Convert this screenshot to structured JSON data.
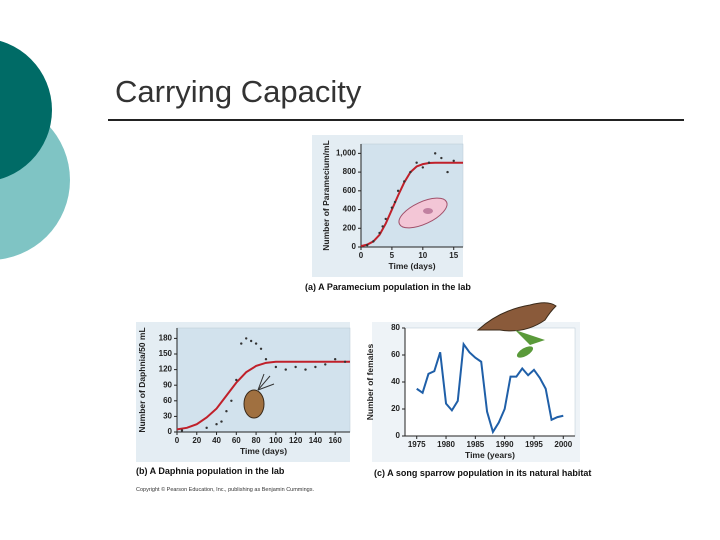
{
  "slide_title": "Carrying Capacity",
  "credit": "Copyright © Pearson Education, Inc., publishing as Benjamin Cummings.",
  "chart_data": [
    {
      "type": "line",
      "caption": "(a) A Paramecium population in the lab",
      "xlabel": "Time (days)",
      "ylabel": "Number of Paramecium/mL",
      "xlim": [
        0,
        16.5
      ],
      "ylim": [
        0,
        1100
      ],
      "xticks": [
        0,
        5,
        10,
        15
      ],
      "yticks": [
        0,
        200,
        400,
        600,
        800,
        {
          "value": 1000,
          "label": "1,000"
        }
      ],
      "series": [
        {
          "color": "#c0202a",
          "style": "line",
          "x": [
            0,
            1,
            2,
            3,
            4,
            5,
            6,
            7,
            8,
            9,
            10,
            11,
            12,
            16.5
          ],
          "values": [
            10,
            25,
            60,
            130,
            250,
            400,
            550,
            690,
            800,
            860,
            885,
            897,
            900,
            900
          ]
        },
        {
          "color": "#333333",
          "style": "points",
          "x": [
            1,
            2,
            3,
            3.5,
            4,
            5,
            5.5,
            6,
            7,
            8,
            9,
            10,
            11,
            12,
            13,
            14,
            15
          ],
          "values": [
            20,
            60,
            150,
            220,
            300,
            420,
            480,
            600,
            700,
            800,
            900,
            850,
            900,
            1000,
            950,
            800,
            920
          ]
        }
      ]
    },
    {
      "type": "line",
      "caption": "(b) A Daphnia population in the lab",
      "xlabel": "Time (days)",
      "ylabel": "Number of Daphnia/50 mL",
      "xlim": [
        0,
        175
      ],
      "ylim": [
        0,
        200
      ],
      "xticks": [
        0,
        20,
        40,
        60,
        80,
        100,
        120,
        140,
        160
      ],
      "yticks": [
        0,
        30,
        60,
        90,
        120,
        150,
        180
      ],
      "series": [
        {
          "color": "#c0202a",
          "style": "line",
          "x": [
            0,
            10,
            20,
            30,
            40,
            50,
            60,
            70,
            80,
            90,
            100,
            175
          ],
          "values": [
            5,
            8,
            15,
            28,
            45,
            70,
            95,
            115,
            127,
            133,
            135,
            135
          ]
        },
        {
          "color": "#333333",
          "style": "points",
          "x": [
            5,
            30,
            40,
            45,
            50,
            55,
            60,
            65,
            70,
            75,
            80,
            85,
            90,
            100,
            110,
            120,
            130,
            140,
            150,
            160,
            170
          ],
          "values": [
            3,
            8,
            15,
            20,
            40,
            60,
            100,
            170,
            180,
            175,
            170,
            160,
            140,
            125,
            120,
            125,
            120,
            125,
            130,
            140,
            135
          ]
        }
      ]
    },
    {
      "type": "line",
      "caption": "(c) A song sparrow population in its natural habitat",
      "xlabel": "Time (years)",
      "ylabel": "Number of females",
      "xlim": [
        1973,
        2002
      ],
      "ylim": [
        0,
        80
      ],
      "xticks": [
        1975,
        1980,
        1985,
        1990,
        1995,
        2000
      ],
      "yticks": [
        0,
        20,
        40,
        60,
        80
      ],
      "series": [
        {
          "color": "#1f5fa8",
          "style": "line",
          "x": [
            1975,
            1976,
            1977,
            1978,
            1979,
            1980,
            1981,
            1982,
            1983,
            1984,
            1985,
            1986,
            1987,
            1988,
            1989,
            1990,
            1991,
            1992,
            1993,
            1994,
            1995,
            1996,
            1997,
            1998,
            1999,
            2000
          ],
          "values": [
            35,
            32,
            46,
            48,
            62,
            24,
            19,
            26,
            68,
            62,
            58,
            55,
            18,
            3,
            10,
            20,
            44,
            44,
            50,
            45,
            49,
            43,
            35,
            12,
            14,
            15
          ]
        }
      ]
    }
  ]
}
